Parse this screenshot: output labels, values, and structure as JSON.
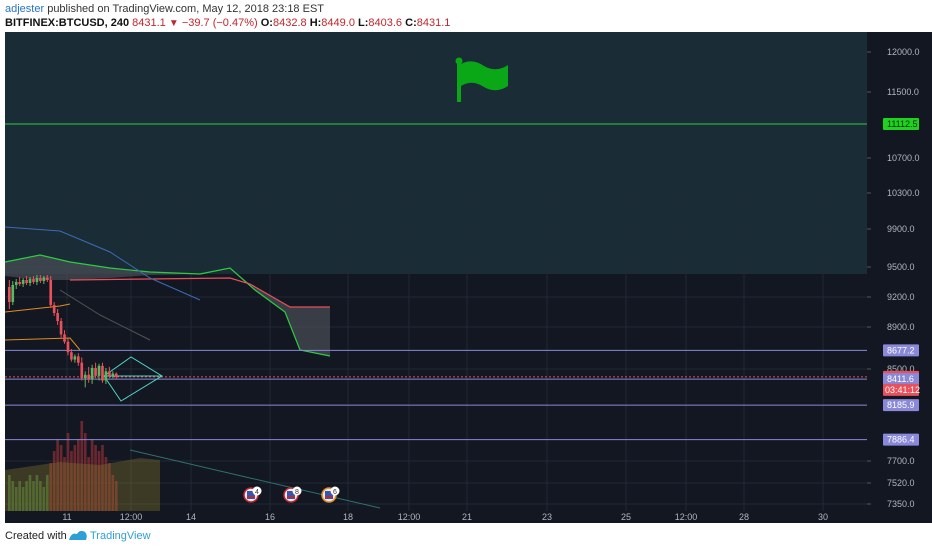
{
  "header": {
    "author": "adjester",
    "published_text": " published on TradingView.com, May 12, 2018 23:18 EST",
    "symbol": "BITFINEX:BTCUSD, 240",
    "last": "8431.1",
    "change": "−39.7 (−0.47%)",
    "open_label": "O:",
    "open": "8432.8",
    "high_label": "H:",
    "high": "8449.0",
    "low_label": "L:",
    "low": "8403.6",
    "close_label": "C:",
    "close": "8431.1"
  },
  "footer": {
    "created_with": "Created with",
    "brand": "TradingView"
  },
  "colors": {
    "background": "#131722",
    "cloud_top": "#1a2d36",
    "green_line": "#2ecc40",
    "blue_line": "#8a88d8",
    "price_line": "#e8505b",
    "flag": "#0aa816",
    "up_candle": "#5ab95e",
    "down_candle": "#e8505b"
  },
  "chart_data": {
    "type": "candlestick",
    "y_tick_labels": [
      "12000.0",
      "11500.0",
      "10700.0",
      "10300.0",
      "9900.0",
      "9500.0",
      "9200.0",
      "8900.0",
      "8500.0",
      "7700.0",
      "7520.0",
      "7350.0"
    ],
    "y_tick_values": [
      12000,
      11500,
      10700,
      10300,
      9900,
      9500,
      9200,
      8900,
      8500,
      7700,
      7520,
      7350
    ],
    "x_tick_labels": [
      "11",
      "12:00",
      "14",
      "16",
      "18",
      "12:00",
      "21",
      "23",
      "25",
      "12:00",
      "28",
      "30"
    ],
    "horizontal_levels": [
      {
        "value": 11112.5,
        "label": "11112.5",
        "color": "#2ecc40"
      },
      {
        "value": 8677.2,
        "label": "8677.2",
        "color": "#8a88d8"
      },
      {
        "value": 8431.1,
        "label": "8431.1",
        "color": "#e8505b"
      },
      {
        "value": 8411.6,
        "label": "8411.6",
        "color": "#8a88d8"
      },
      {
        "value": 8185.9,
        "label": "8185.9",
        "color": "#8a88d8"
      },
      {
        "value": 7886.4,
        "label": "7886.4",
        "color": "#8a88d8"
      }
    ],
    "countdown_label": "03:41:12",
    "candles": [
      {
        "o": 9300,
        "h": 9370,
        "l": 9080,
        "c": 9150
      },
      {
        "o": 9150,
        "h": 9360,
        "l": 9120,
        "c": 9320
      },
      {
        "o": 9320,
        "h": 9380,
        "l": 9280,
        "c": 9350
      },
      {
        "o": 9350,
        "h": 9400,
        "l": 9310,
        "c": 9330
      },
      {
        "o": 9330,
        "h": 9390,
        "l": 9300,
        "c": 9370
      },
      {
        "o": 9370,
        "h": 9410,
        "l": 9320,
        "c": 9340
      },
      {
        "o": 9340,
        "h": 9400,
        "l": 9310,
        "c": 9380
      },
      {
        "o": 9380,
        "h": 9410,
        "l": 9330,
        "c": 9350
      },
      {
        "o": 9350,
        "h": 9420,
        "l": 9320,
        "c": 9390
      },
      {
        "o": 9390,
        "h": 9420,
        "l": 9340,
        "c": 9360
      },
      {
        "o": 9360,
        "h": 9410,
        "l": 9330,
        "c": 9395
      },
      {
        "o": 9395,
        "h": 9420,
        "l": 9350,
        "c": 9370
      },
      {
        "o": 9370,
        "h": 9410,
        "l": 9090,
        "c": 9120
      },
      {
        "o": 9120,
        "h": 9150,
        "l": 9010,
        "c": 9040
      },
      {
        "o": 9040,
        "h": 9080,
        "l": 8920,
        "c": 8960
      },
      {
        "o": 8960,
        "h": 8990,
        "l": 8800,
        "c": 8830
      },
      {
        "o": 8830,
        "h": 8870,
        "l": 8740,
        "c": 8760
      },
      {
        "o": 8760,
        "h": 8790,
        "l": 8630,
        "c": 8660
      },
      {
        "o": 8660,
        "h": 8690,
        "l": 8570,
        "c": 8590
      },
      {
        "o": 8590,
        "h": 8640,
        "l": 8560,
        "c": 8620
      },
      {
        "o": 8620,
        "h": 8650,
        "l": 8530,
        "c": 8560
      },
      {
        "o": 8560,
        "h": 8610,
        "l": 8400,
        "c": 8420
      },
      {
        "o": 8420,
        "h": 8480,
        "l": 8340,
        "c": 8450
      },
      {
        "o": 8450,
        "h": 8520,
        "l": 8380,
        "c": 8410
      },
      {
        "o": 8410,
        "h": 8540,
        "l": 8370,
        "c": 8510
      },
      {
        "o": 8510,
        "h": 8560,
        "l": 8420,
        "c": 8440
      },
      {
        "o": 8440,
        "h": 8550,
        "l": 8400,
        "c": 8530
      },
      {
        "o": 8530,
        "h": 8560,
        "l": 8380,
        "c": 8400
      },
      {
        "o": 8400,
        "h": 8510,
        "l": 8370,
        "c": 8480
      },
      {
        "o": 8480,
        "h": 8520,
        "l": 8420,
        "c": 8440
      },
      {
        "o": 8440,
        "h": 8480,
        "l": 8420,
        "c": 8460
      },
      {
        "o": 8460,
        "h": 8470,
        "l": 8410,
        "c": 8431
      }
    ],
    "event_markers": [
      {
        "label": "4",
        "x_bar": 54
      },
      {
        "label": "8",
        "x_bar": 62
      },
      {
        "label": "6",
        "x_bar": 70
      }
    ]
  }
}
